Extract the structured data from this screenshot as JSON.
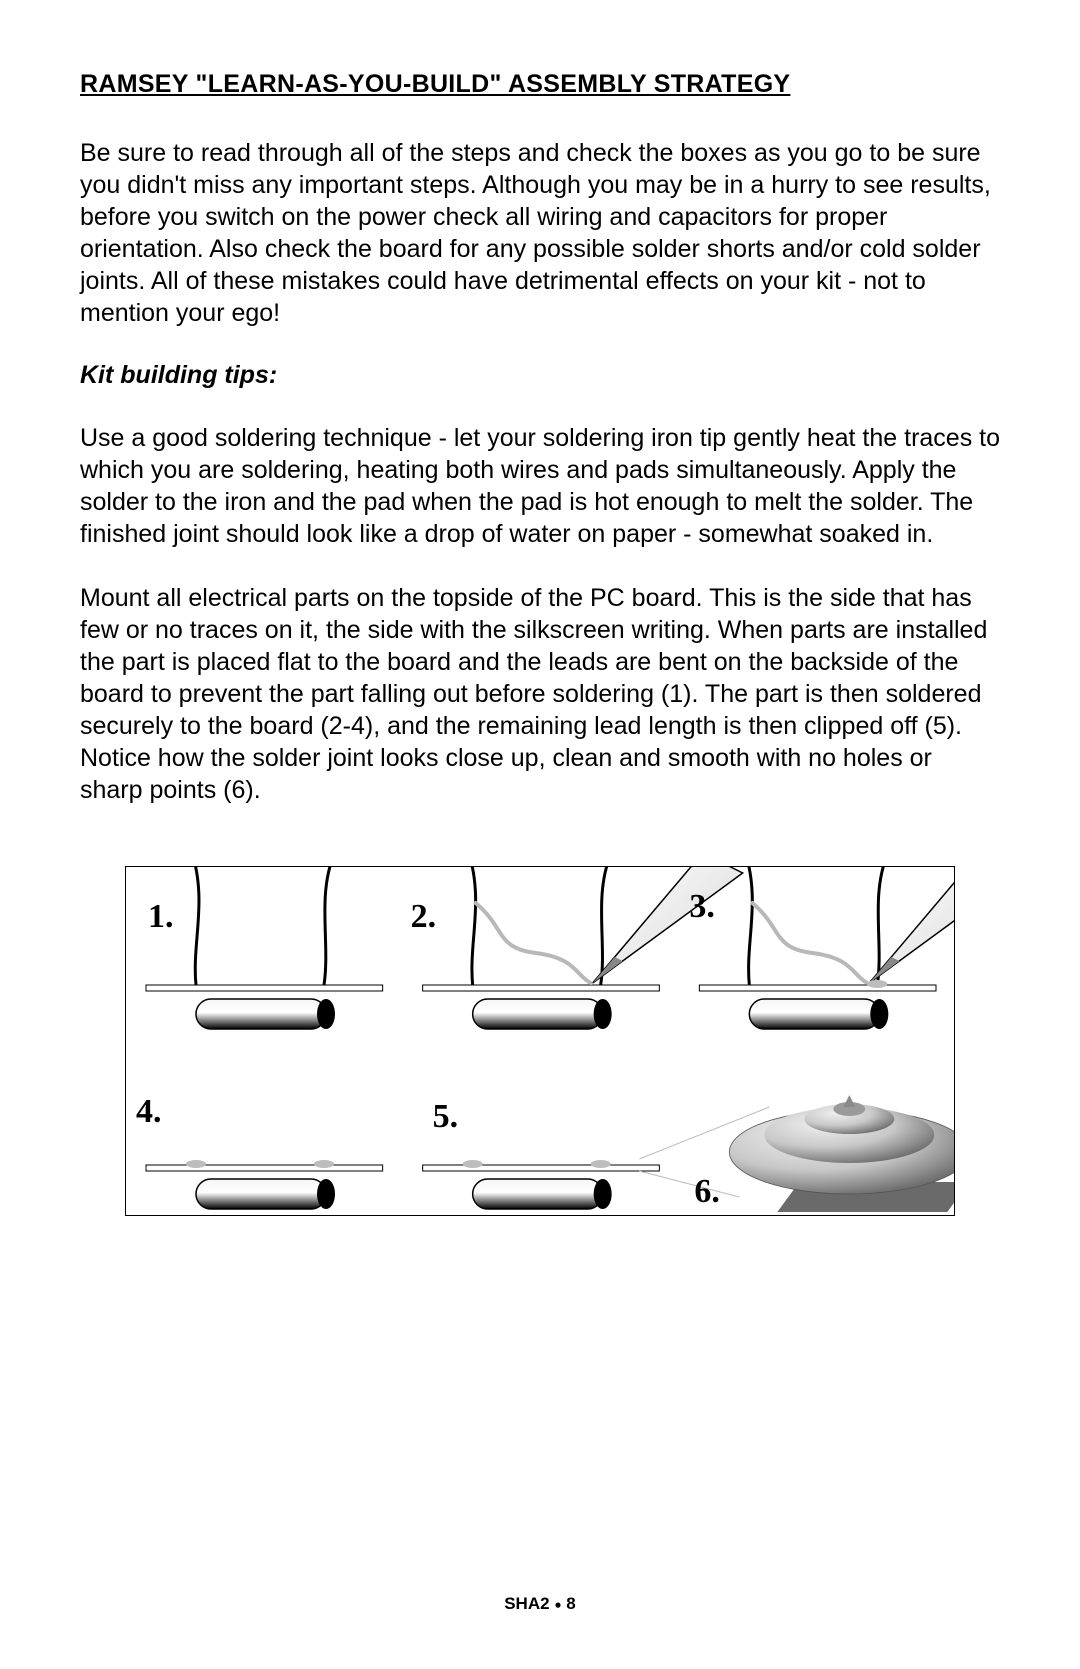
{
  "heading": "RAMSEY \"LEARN-AS-YOU-BUILD\" ASSEMBLY STRATEGY",
  "para1": "Be sure to read through all of the steps and check the boxes as you go to be sure you didn't miss any important steps. Although you may be in a hurry to see results, before you switch on the power check all wiring and capacitors for proper orientation. Also check the board for any possible solder shorts and/or cold solder joints. All of these mistakes could have detrimental effects on your kit - not to mention your ego!",
  "subheading": "Kit building tips:",
  "para2": "Use a good soldering technique - let your soldering iron tip gently heat the traces to which you are soldering, heating both wires and pads simultaneously. Apply the solder to the iron and the pad when the pad is hot enough to melt the solder. The finished joint should look like a drop of water on paper - somewhat soaked in.",
  "para3": "Mount all electrical parts on the topside of the PC board. This is the side that has few or no traces on it, the side with the silkscreen writing. When parts are installed the part is placed flat to the board and the leads are bent on the backside of the board to prevent the part falling out before soldering (1). The part is then soldered securely to the board (2-4), and the remaining lead length is then clipped off (5). Notice how the solder joint looks close up, clean and smooth with no holes or sharp points (6).",
  "figure": {
    "labels": [
      "1.",
      "2.",
      "3.",
      "4.",
      "5.",
      "6."
    ],
    "colors": {
      "stroke": "#000000",
      "board_fill": "#ffffff",
      "lead_light": "#f5f5f5",
      "lead_shadow": "#000000",
      "iron_body": "#e8e8e8",
      "iron_tip": "#888888",
      "solder_wire": "#b8b8b8",
      "solder_dome_light": "#c8c8c8",
      "solder_dome_dark": "#6a6a6a",
      "slab": "#6a6a6a"
    }
  },
  "footer": {
    "code": "SHA2",
    "sep": "●",
    "page": "8"
  }
}
